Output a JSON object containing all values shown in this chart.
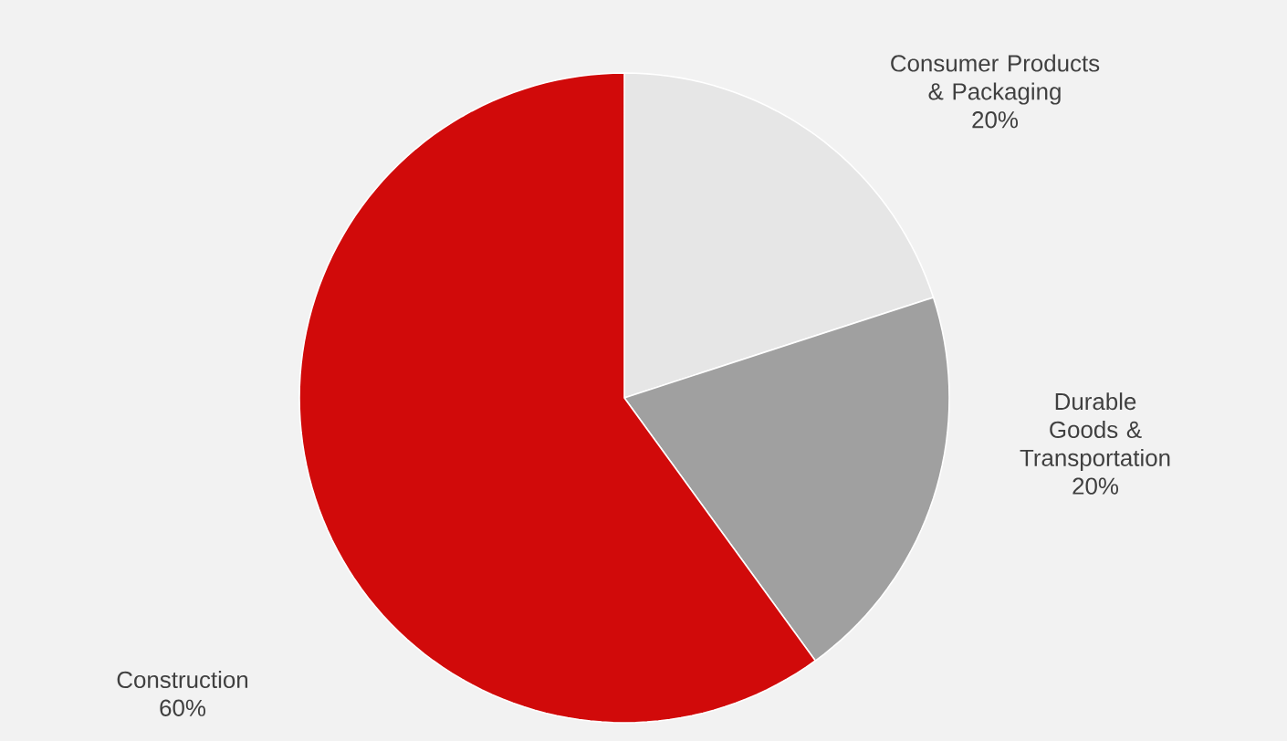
{
  "chart_data": {
    "type": "pie",
    "categories": [
      "Consumer Products & Packaging",
      "Durable Goods & Transportation",
      "Construction"
    ],
    "values": [
      20,
      20,
      60
    ],
    "colors": [
      "#e6e6e6",
      "#a0a0a0",
      "#d10a0a"
    ],
    "value_labels": [
      "20%",
      "20%",
      "60%"
    ]
  }
}
